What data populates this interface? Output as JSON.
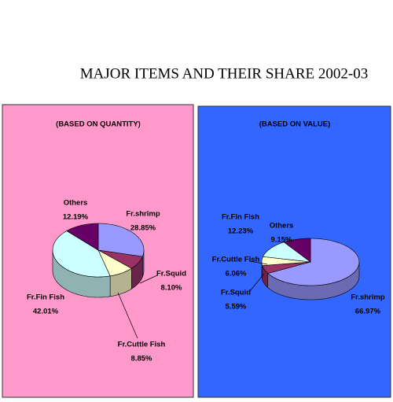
{
  "title": "MAJOR ITEMS AND THEIR SHARE 2002-03",
  "chart_data": [
    {
      "type": "pie",
      "subtitle": "(BASED ON QUANTITY)",
      "background": "#ff99cc",
      "categories": [
        "Fr.shrimp",
        "Fr.Squid",
        "Fr.Cuttle Fish",
        "Fr.Fin Fish",
        "Others"
      ],
      "values": [
        28.85,
        8.1,
        8.85,
        42.01,
        12.19
      ],
      "value_labels": [
        "28.85%",
        "8.10%",
        "8.85%",
        "42.01%",
        "12.19%"
      ],
      "colors": [
        "#9999ff",
        "#993366",
        "#ffffcc",
        "#ccffff",
        "#660066"
      ]
    },
    {
      "type": "pie",
      "subtitle": "(BASED ON VALUE)",
      "background": "#3366ff",
      "categories": [
        "Fr.shrimp",
        "Fr.Squid",
        "Fr.Cuttle Fish",
        "Fr.Fin Fish",
        "Others"
      ],
      "values": [
        66.97,
        5.59,
        6.06,
        12.23,
        9.15
      ],
      "value_labels": [
        "66.97%",
        "5.59%",
        "6.06%",
        "12.23%",
        "9.15%"
      ],
      "colors": [
        "#9999ff",
        "#993366",
        "#ffffcc",
        "#ccffff",
        "#660066"
      ]
    }
  ]
}
